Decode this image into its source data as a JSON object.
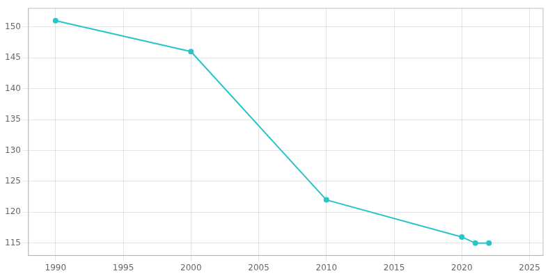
{
  "chart_data": {
    "type": "line",
    "x": [
      1990,
      2000,
      2010,
      2020,
      2021,
      2022
    ],
    "values": [
      151,
      146,
      122,
      116,
      115,
      115
    ],
    "color": "#29c5c8",
    "marker": "circle",
    "xlim": [
      1988,
      2026
    ],
    "ylim": [
      113,
      153
    ],
    "xticks": [
      1990,
      1995,
      2000,
      2005,
      2010,
      2015,
      2020,
      2025
    ],
    "yticks": [
      115,
      120,
      125,
      130,
      135,
      140,
      145,
      150
    ],
    "grid": true
  }
}
